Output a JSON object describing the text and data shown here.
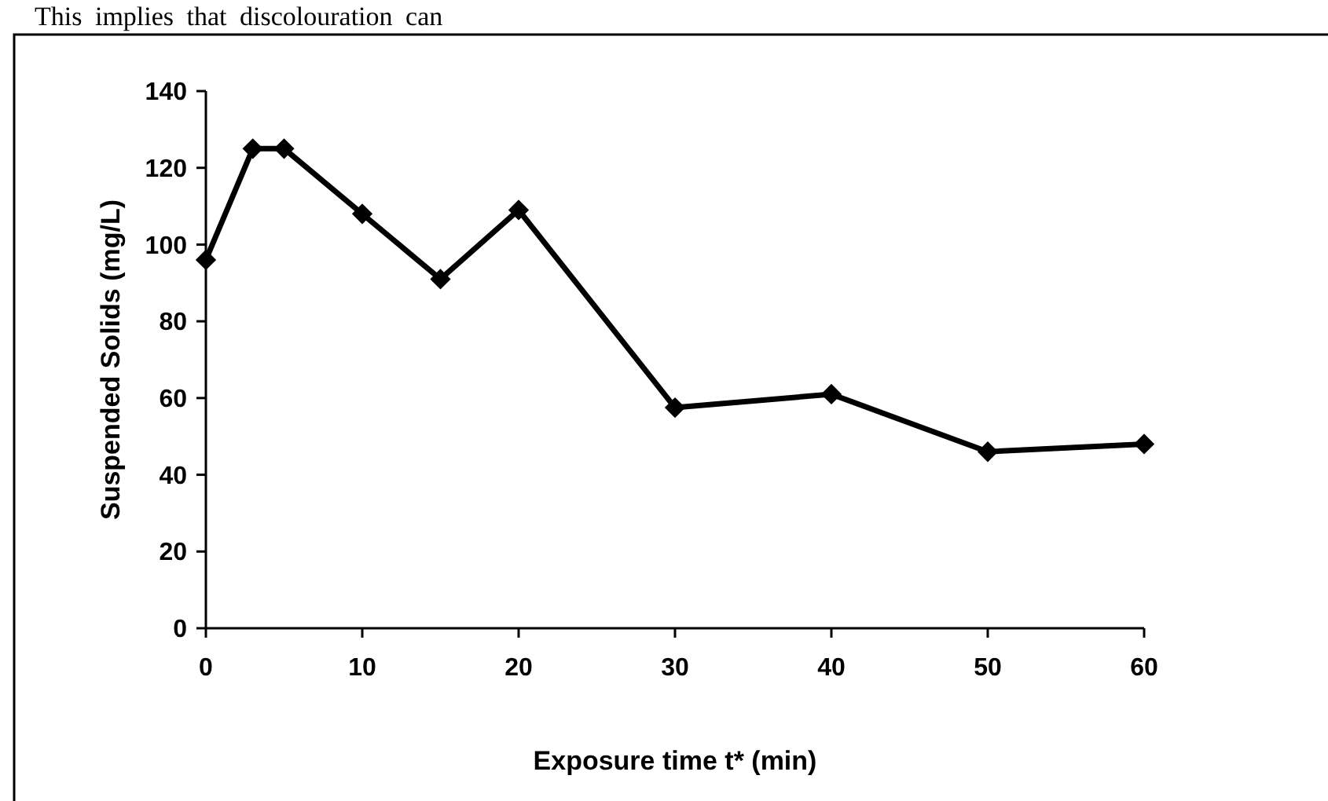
{
  "chart_data": {
    "type": "line",
    "xlabel": "Exposure time t* (min)",
    "ylabel": "Suspended Solids (mg/L)",
    "annotations": [
      "This implies that discolouration can"
    ],
    "x": [
      0,
      3,
      5,
      10,
      15,
      20,
      30,
      40,
      50,
      60
    ],
    "series": [
      {
        "color": "#000000",
        "values": [
          96,
          125,
          125,
          108,
          91,
          109,
          57.5,
          61,
          46,
          48
        ]
      }
    ],
    "xlim": [
      0,
      60
    ],
    "xticks": [
      0,
      10,
      20,
      30,
      40,
      50,
      60
    ],
    "ylim": [
      0,
      140
    ],
    "yticks": [
      0,
      20,
      40,
      60,
      80,
      100,
      120,
      140
    ],
    "marker": "diamond",
    "line_style": "solid"
  }
}
